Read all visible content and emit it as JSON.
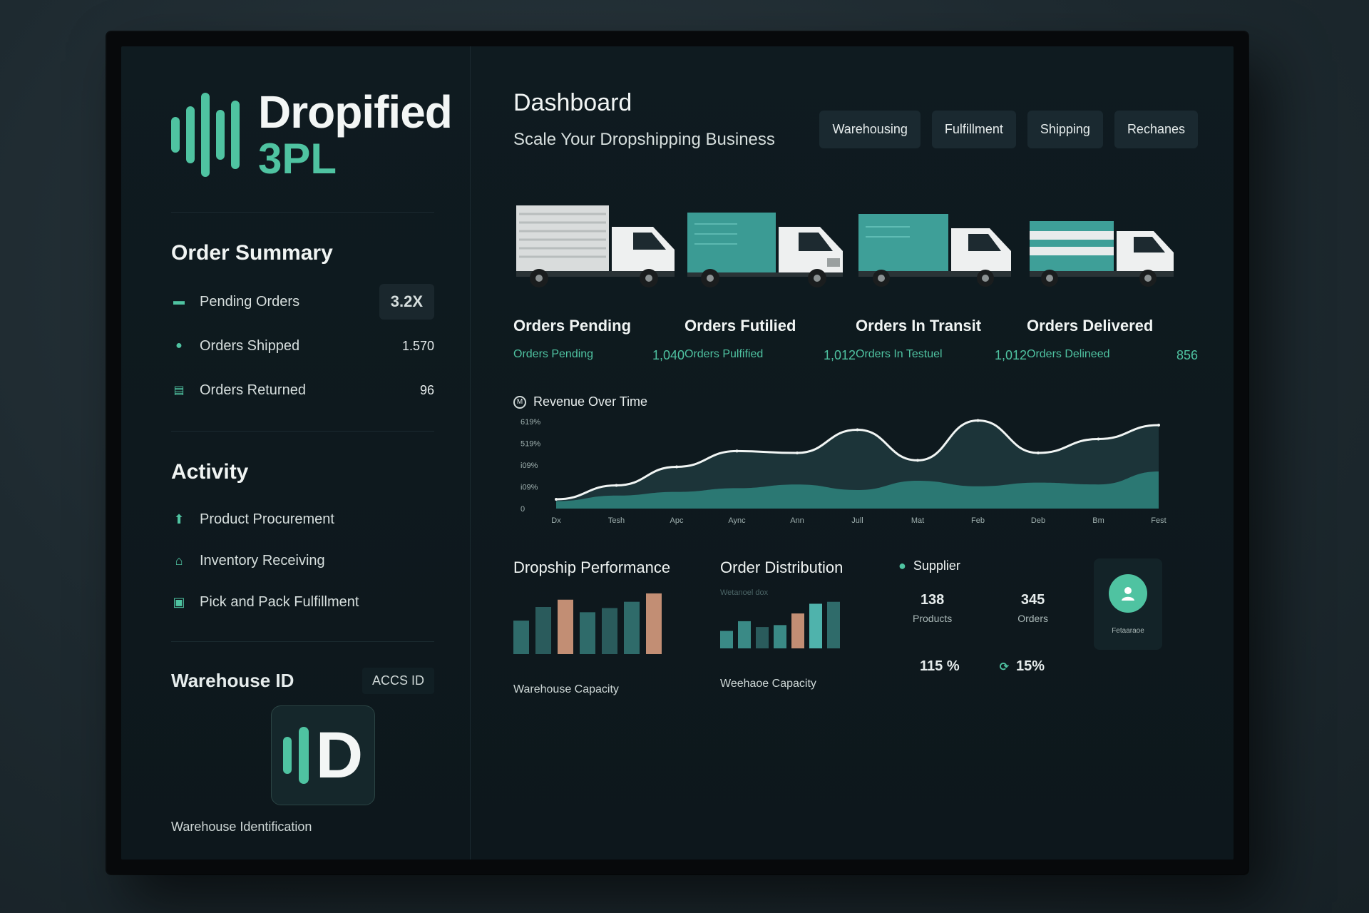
{
  "brand": {
    "line1": "Dropified",
    "line2": "3PL"
  },
  "order_summary": {
    "title": "Order Summary",
    "badge": "3.2X",
    "rows": [
      {
        "label": "Pending Orders",
        "value": ""
      },
      {
        "label": "Orders Shipped",
        "value": "1.570"
      },
      {
        "label": "Orders Returned",
        "value": "96"
      }
    ]
  },
  "activity": {
    "title": "Activity",
    "items": [
      {
        "label": "Product Procurement"
      },
      {
        "label": "Inventory Receiving"
      },
      {
        "label": "Pick and Pack Fulfillment"
      }
    ]
  },
  "warehouse": {
    "title": "Warehouse ID",
    "acc_label": "ACCS ID",
    "id_letter": "D",
    "footer": "Warehouse Identification"
  },
  "header": {
    "title": "Dashboard",
    "subtitle": "Scale Your Dropshipping Business",
    "tabs": [
      "Warehousing",
      "Fulfillment",
      "Shipping",
      "Rechanes"
    ]
  },
  "trucks": [
    {
      "title": "Orders Pending",
      "stat_label": "Orders Pending",
      "stat_value": "1,040"
    },
    {
      "title": "Orders Futilied",
      "stat_label": "Orders Pulfified",
      "stat_value": "1,012"
    },
    {
      "title": "Orders In Transit",
      "stat_label": "Orders In Testuel",
      "stat_value": "1,012"
    },
    {
      "title": "Orders Delivered",
      "stat_label": "Orders Delineed",
      "stat_value": "856"
    }
  ],
  "chart_data": {
    "type": "area",
    "title": "Revenue Over Time",
    "yticks": [
      "619%",
      "519%",
      "i09%",
      "i09%",
      "0"
    ],
    "categories": [
      "Dx",
      "Tesh",
      "Apc",
      "Aync",
      "Ann",
      "Jull",
      "Mat",
      "Feb",
      "Deb",
      "Bm",
      "Fest"
    ],
    "series": [
      {
        "values": [
          10,
          25,
          45,
          62,
          60,
          85,
          52,
          95,
          60,
          75,
          90
        ]
      },
      {
        "values": [
          8,
          14,
          18,
          22,
          26,
          20,
          30,
          24,
          28,
          26,
          40
        ]
      }
    ],
    "ylim": [
      0,
      100
    ]
  },
  "dropship_performance": {
    "title": "Dropship Performance",
    "footer": "Warehouse Capacity",
    "bars": [
      32,
      45,
      52,
      40,
      44,
      50,
      58
    ],
    "bar_colors": [
      "#2f6b6a",
      "#2a5b5c",
      "#c28e74",
      "#2f6b6a",
      "#2a5b5c",
      "#2f6b6a",
      "#c28e74"
    ]
  },
  "order_distribution": {
    "title": "Order Distribution",
    "faint": "Wetanoel dox",
    "footer": "Weehaoe Capacity",
    "bars": [
      18,
      28,
      22,
      24,
      36,
      46,
      48
    ],
    "bar_colors": [
      "#3a8a86",
      "#3a8a86",
      "#2a5b5c",
      "#3a8a86",
      "#c28e74",
      "#4fb3ac",
      "#2f6b6a"
    ]
  },
  "supplier": {
    "title": "Supplier",
    "stats": [
      {
        "num": "138",
        "caption": "Products"
      },
      {
        "num": "345",
        "caption": "Orders"
      }
    ],
    "pct1": "115 %",
    "pct2": "15%",
    "avatar_label": "Fetaaraoe"
  },
  "colors": {
    "accent": "#4fc3a1",
    "bg": "#0f1b20",
    "tan": "#c28e74"
  }
}
